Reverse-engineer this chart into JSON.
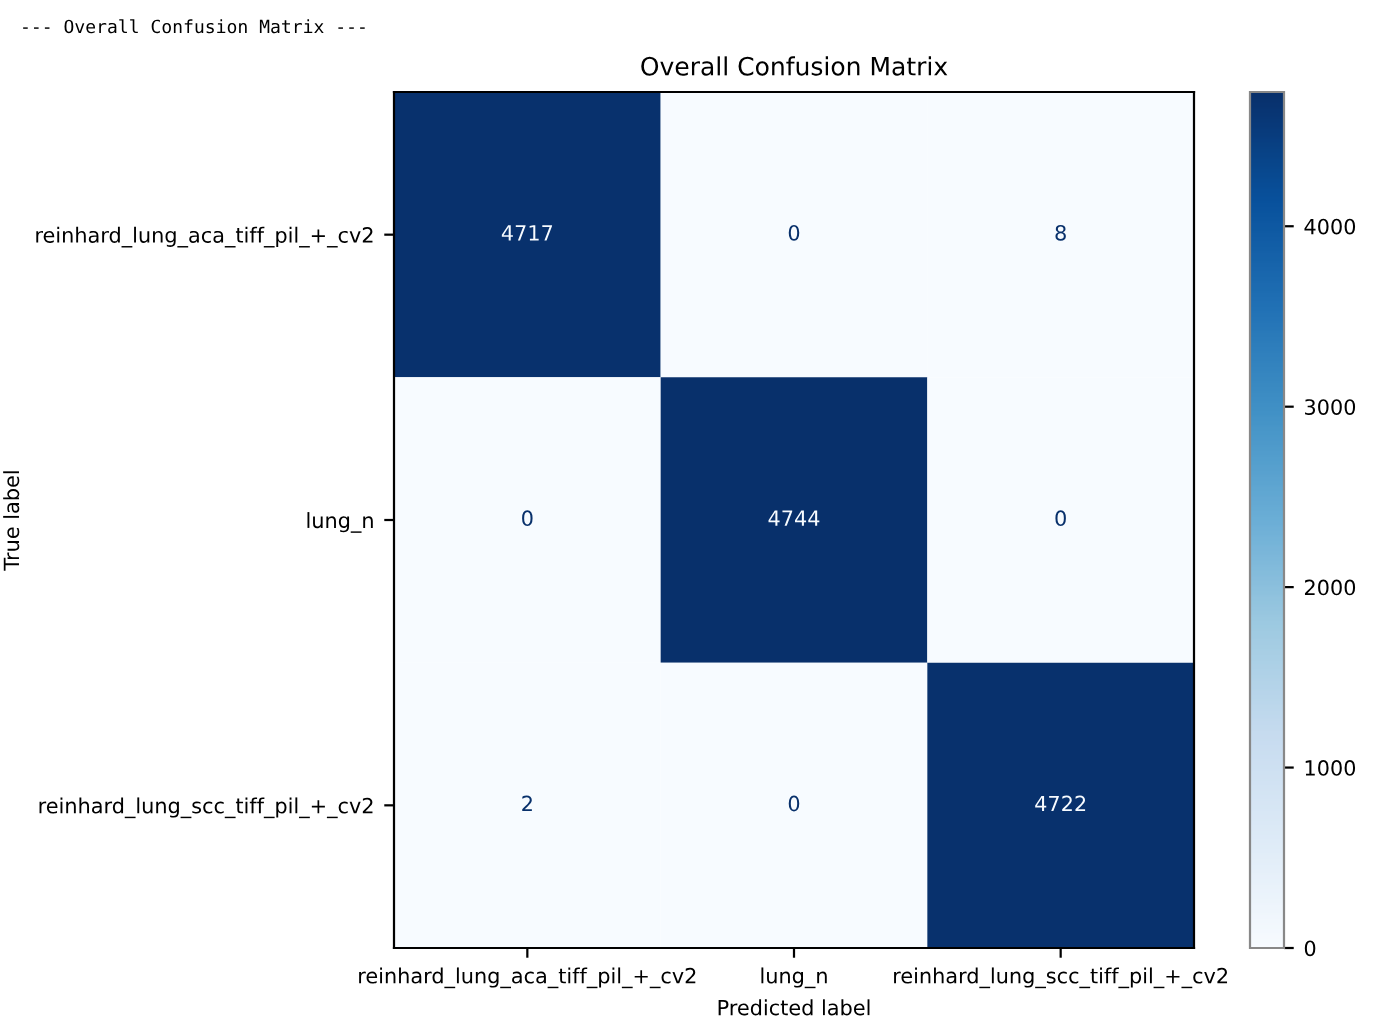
{
  "chart_data": {
    "type": "heatmap",
    "title": "Overall Confusion Matrix",
    "xlabel": "Predicted label",
    "ylabel": "True label",
    "annotations": [
      "--- Overall Confusion Matrix ---"
    ],
    "categories": [
      "reinhard_lung_aca_tiff_pil_+_cv2",
      "lung_n",
      "reinhard_lung_scc_tiff_pil_+_cv2"
    ],
    "y_categories": [
      "reinhard_lung_aca_tiff_pil_+_cv2",
      "lung_n",
      "reinhard_lung_scc_tiff_pil_+_cv2"
    ],
    "cells": [
      [
        4717,
        0,
        8
      ],
      [
        0,
        4744,
        0
      ],
      [
        2,
        0,
        4722
      ]
    ],
    "clim": [
      0,
      4744
    ],
    "cticks": [
      0,
      1000,
      2000,
      3000,
      4000
    ],
    "data_labels": true,
    "grid": false
  }
}
